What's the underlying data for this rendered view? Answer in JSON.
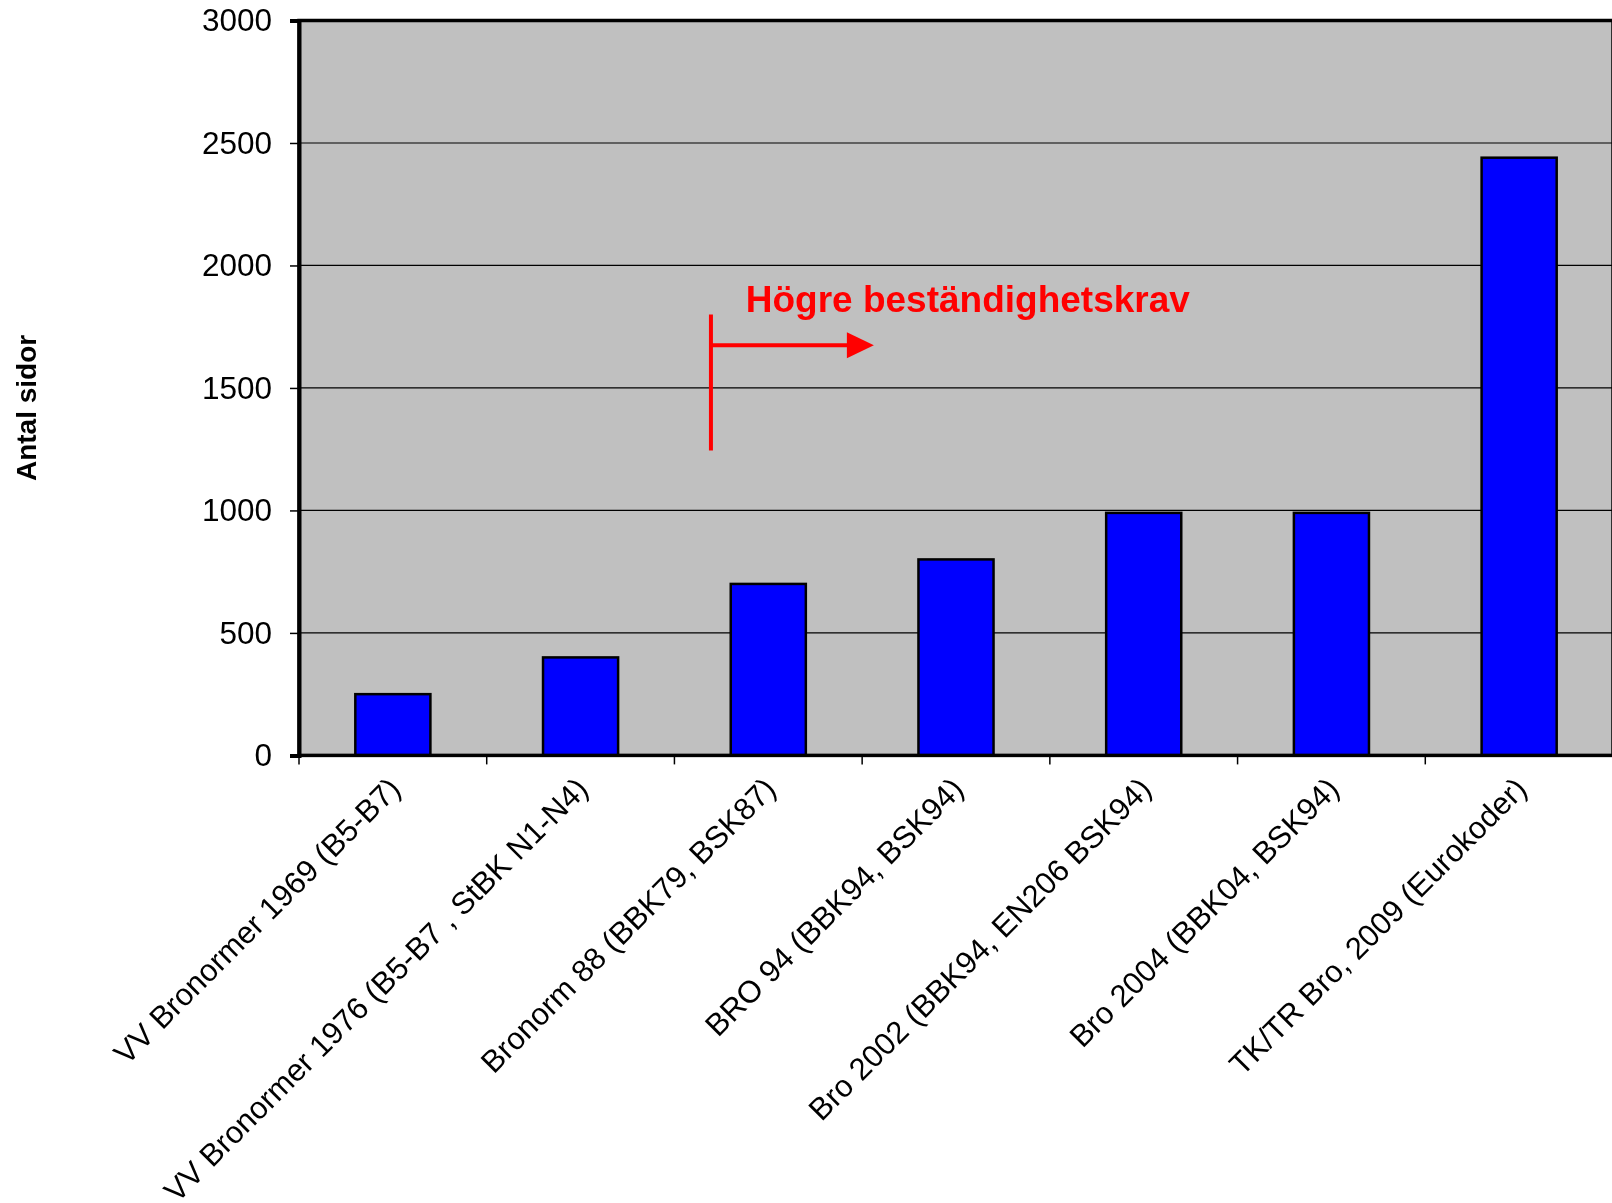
{
  "chart_data": {
    "type": "bar",
    "ylabel": "Antal sidor",
    "categories": [
      "VV Bronormer 1969 (B5-B7)",
      "VV Bronormer 1976 (B5-B7 , StBK N1-N4)",
      "Bronorm 88 (BBK79, BSK87)",
      "BRO 94 (BBK94, BSK94)",
      "Bro 2002 (BBK94, EN206 BSK94)",
      "Bro 2004 (BBK04, BSK94)",
      "TK/TR Bro, 2009 (Eurokoder)"
    ],
    "values": [
      250,
      400,
      700,
      800,
      990,
      990,
      2440
    ],
    "color": "#0000ff",
    "ylim": [
      0,
      3000
    ],
    "yticks": [
      0,
      500,
      1000,
      1500,
      2000,
      2500,
      3000
    ],
    "grid": "y",
    "annotations": [
      "Högre beständighetskrav"
    ]
  }
}
